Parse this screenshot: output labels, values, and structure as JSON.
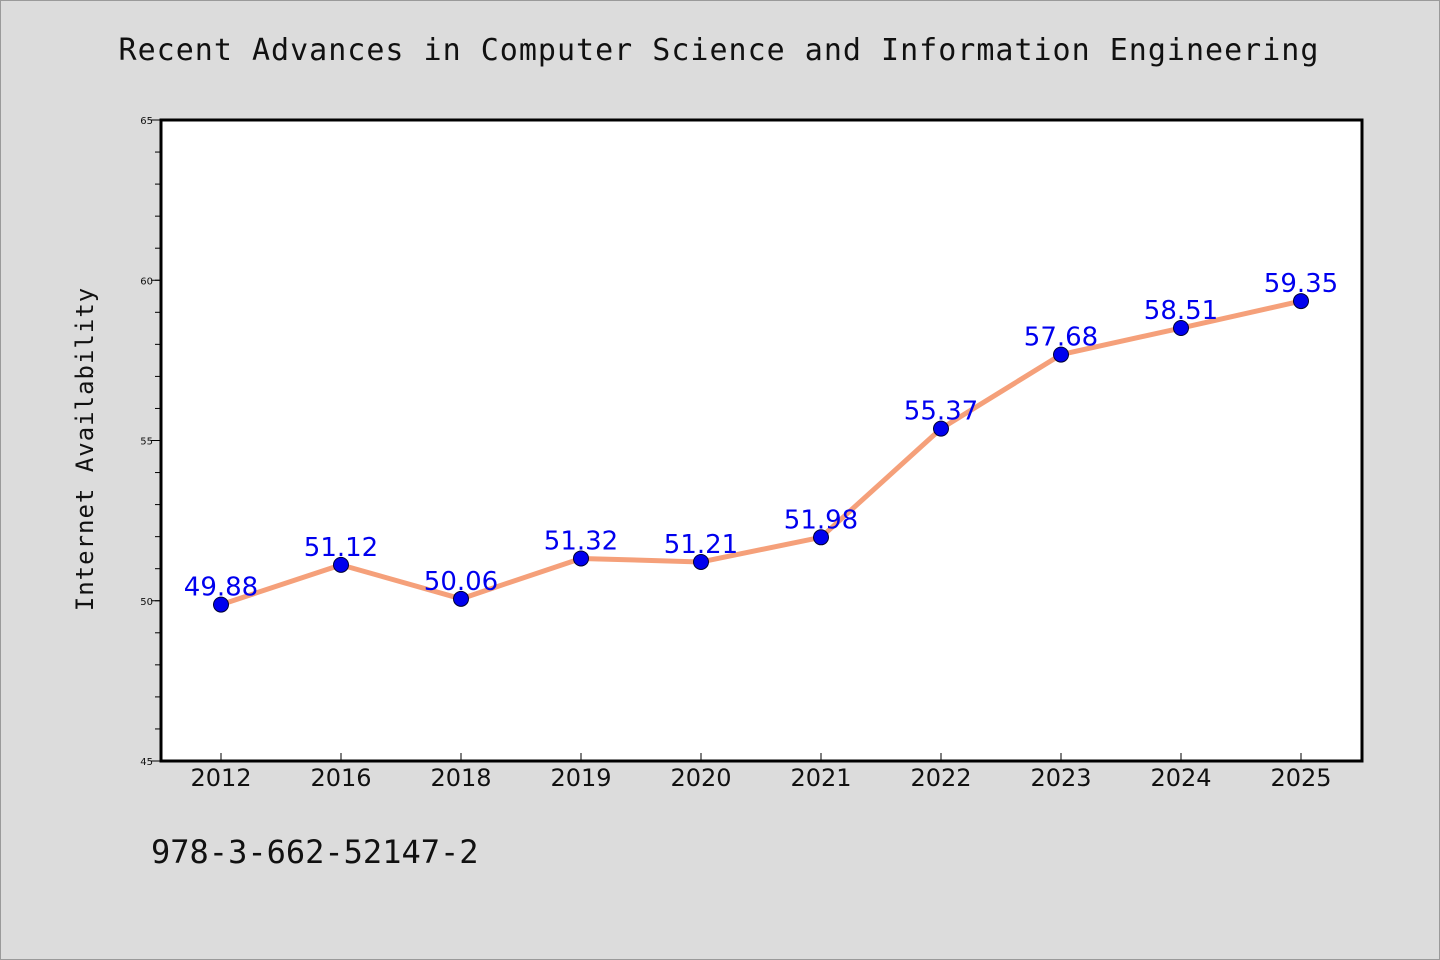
{
  "title": "Recent Advances in Computer Science and Information Engineering",
  "footer": "978-3-662-52147-2",
  "chart_data": {
    "type": "line",
    "title": "Recent Advances in Computer Science and Information Engineering",
    "xlabel": "",
    "ylabel": "Internet Availability",
    "categories": [
      "2012",
      "2016",
      "2018",
      "2019",
      "2020",
      "2021",
      "2022",
      "2023",
      "2024",
      "2025"
    ],
    "series": [
      {
        "values": [
          49.88,
          51.12,
          50.06,
          51.32,
          51.21,
          51.98,
          55.37,
          57.68,
          58.51,
          59.35
        ],
        "labels": [
          "49.88",
          "51.12",
          "50.06",
          "51.32",
          "51.21",
          "51.98",
          "55.37",
          "57.68",
          "58.51",
          "59.35"
        ]
      }
    ],
    "ylim": [
      45,
      65
    ],
    "yticks": [
      "45",
      "50",
      "55",
      "60",
      "65"
    ],
    "grid": false,
    "colors": {
      "line": "#f5a07a",
      "marker": "#0000ee",
      "label": "#0000ee",
      "background": "#dcdcdc",
      "plot_background": "#ffffff"
    }
  }
}
